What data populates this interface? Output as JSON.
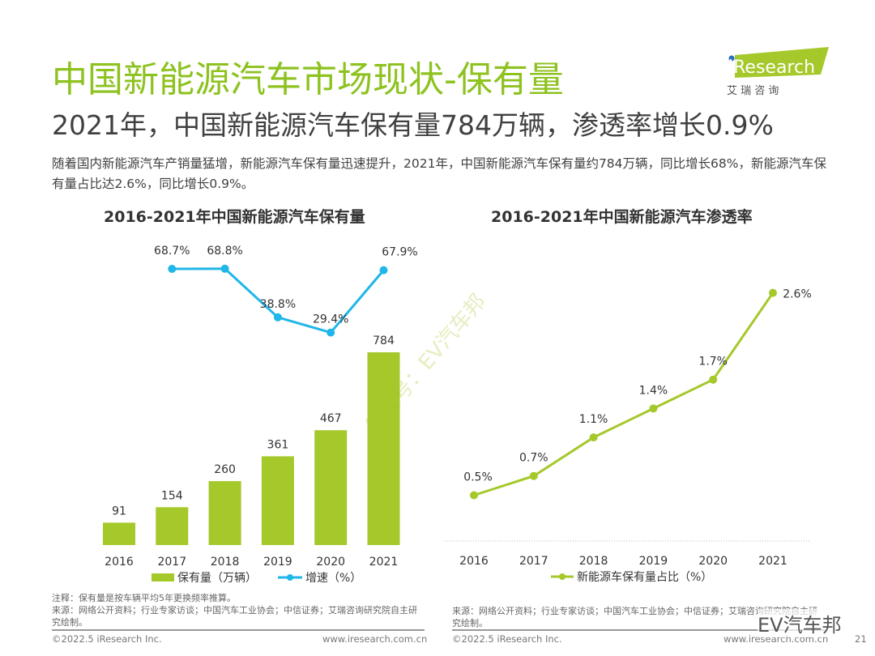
{
  "title": "中国新能源汽车市场现状-保有量",
  "subtitle": "2021年，中国新能源汽车保有量784万辆，渗透率增长0.9%",
  "description": "随着国内新能源汽车产销量猛增，新能源汽车保有量迅速提升，2021年，中国新能源汽车保有量约784万辆，同比增长68%，新能源汽车保有量占比达2.6%，同比增长0.9%。",
  "logo": {
    "text": "iResearch",
    "sub": "艾 瑞 咨 询"
  },
  "colors": {
    "green": "#a5c82b",
    "title_green": "#8dc21f",
    "cyan": "#1fb6e8"
  },
  "chart_data": [
    {
      "type": "bar",
      "title": "2016-2021年中国新能源汽车保有量",
      "categories": [
        "2016",
        "2017",
        "2018",
        "2019",
        "2020",
        "2021"
      ],
      "series": [
        {
          "name": "保有量（万辆）",
          "type": "bar",
          "values": [
            91,
            154,
            260,
            361,
            467,
            784
          ]
        },
        {
          "name": "增速（%）",
          "type": "line",
          "values": [
            null,
            68.7,
            68.8,
            38.8,
            29.4,
            67.9
          ],
          "labels": [
            "",
            "68.7%",
            "68.8%",
            "38.8%",
            "29.4%",
            "67.9%"
          ]
        }
      ],
      "legend": "bottom"
    },
    {
      "type": "line",
      "title": "2016-2021年中国新能源汽车渗透率",
      "categories": [
        "2016",
        "2017",
        "2018",
        "2019",
        "2020",
        "2021"
      ],
      "series": [
        {
          "name": "新能源车保有量占比（%）",
          "values": [
            0.5,
            0.7,
            1.1,
            1.4,
            1.7,
            2.6
          ],
          "labels": [
            "0.5%",
            "0.7%",
            "1.1%",
            "1.4%",
            "1.7%",
            "2.6%"
          ]
        }
      ],
      "legend": "bottom"
    }
  ],
  "notes": {
    "left_note": "注释：保有量是按车辆平均5年更换频率推算。",
    "left_source": "来源：网络公开资料；行业专家访谈；中国汽车工业协会；中信证券；艾瑞咨询研究院自主研究绘制。",
    "right_source": "来源：网络公开资料；行业专家访谈；中国汽车工业协会；中信证券；艾瑞咨询研究院自主研究绘制。"
  },
  "watermark": "公众号：EV汽车邦",
  "watermark2": "EV汽车邦",
  "footer": {
    "copyright": "©2022.5 iResearch Inc.",
    "url": "www.iresearch.com.cn",
    "page": "21"
  }
}
